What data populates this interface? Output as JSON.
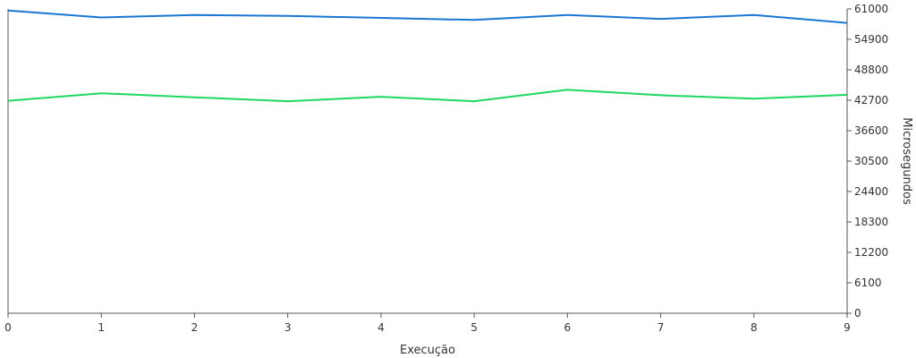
{
  "chart_data": {
    "type": "line",
    "title": "",
    "xlabel": "Execução",
    "ylabel": "Microsegundos",
    "x": [
      0,
      1,
      2,
      3,
      4,
      5,
      6,
      7,
      8,
      9
    ],
    "x_ticks": [
      "0",
      "1",
      "2",
      "3",
      "4",
      "5",
      "6",
      "7",
      "8",
      "9"
    ],
    "y_ticks": [
      "0",
      "6100",
      "12200",
      "18300",
      "24400",
      "30500",
      "36600",
      "42700",
      "48800",
      "54900",
      "61000"
    ],
    "ylim": [
      0,
      61000
    ],
    "y_axis_side": "right",
    "grid": false,
    "legend": "none",
    "series": [
      {
        "color": "#1976d2",
        "values": [
          60700,
          59300,
          59800,
          59600,
          59200,
          58800,
          59800,
          59000,
          59800,
          58200
        ]
      },
      {
        "color": "#1ed760",
        "values": [
          42600,
          44100,
          43300,
          42500,
          43400,
          42500,
          44800,
          43700,
          43000,
          43800
        ]
      }
    ]
  }
}
